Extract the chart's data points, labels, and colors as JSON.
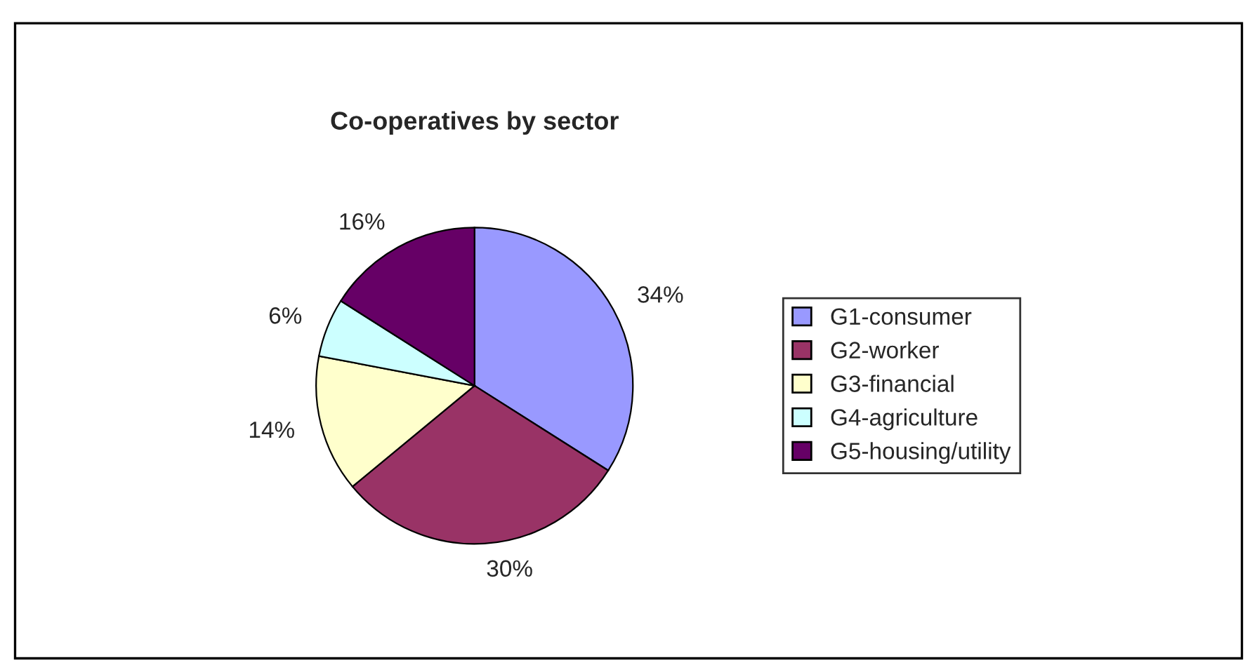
{
  "chart_data": {
    "type": "pie",
    "title": "Co-operatives by sector",
    "categories": [
      "G1-consumer",
      "G2-worker",
      "G3-financial",
      "G4-agriculture",
      "G5-housing/utility"
    ],
    "values": [
      34,
      30,
      14,
      6,
      16
    ],
    "colors": [
      "#9999ff",
      "#993366",
      "#ffffcc",
      "#ccffff",
      "#660066"
    ],
    "value_labels": [
      "34%",
      "30%",
      "14%",
      "6%",
      "16%"
    ],
    "legend": "right"
  }
}
